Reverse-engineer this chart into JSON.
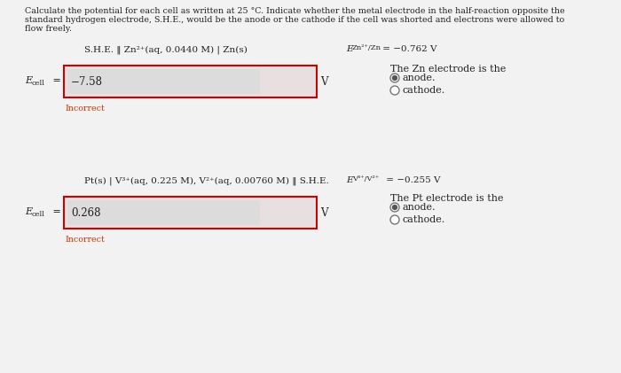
{
  "bg_color": "#d8d8d8",
  "panel_color": "#f0f0f0",
  "header_text_line1": "Calculate the potential for each cell as written at 25 °C. Indicate whether the metal electrode in the half-reaction opposite the",
  "header_text_line2": "standard hydrogen electrode, S.H.E., would be the anode or the cathode if the cell was shorted and electrons were allowed to",
  "header_text_line3": "flow freely.",
  "section1": {
    "cell_notation": "S.H.E. ‖ Zn²⁺(aq, 0.0440 M) | Zn(s)",
    "std_pot_prefix": "E",
    "std_pot_sub": "Zn²⁺/Zn",
    "std_pot_suffix": " = −0.762 V",
    "ecell_label": "E",
    "ecell_sub": "cell",
    "input_value": "−7.58",
    "unit": "V",
    "incorrect_label": "Incorrect",
    "right_text": "The Zn electrode is the",
    "radio1_label": "anode.",
    "radio2_label": "cathode."
  },
  "section2": {
    "cell_notation": "Pt(s) | V³⁺(aq, 0.225 M), V²⁺(aq, 0.00760 M) ‖ S.H.E.",
    "std_pot_prefix": "E",
    "std_pot_sub": "V³⁺/V²⁺",
    "std_pot_suffix": " = −0.255 V",
    "ecell_label": "E",
    "ecell_sub": "cell",
    "input_value": "0.268",
    "unit": "V",
    "incorrect_label": "Incorrect",
    "right_text": "The Pt electrode is the",
    "radio1_label": "anode.",
    "radio2_label": "cathode."
  },
  "font_size_header": 6.8,
  "font_size_notation": 7.5,
  "font_size_ecell": 8.0,
  "font_size_input": 8.5,
  "font_size_incorrect": 6.8,
  "font_size_radio": 8.0,
  "font_size_std": 7.5,
  "input_box_facecolor": "#e8e0e0",
  "input_border_color": "#cc0000",
  "inner_box_color": "#dcdcdc",
  "text_color": "#222222",
  "incorrect_color": "#cc3300",
  "radio_fill_color": "#555555",
  "radio_ring_color": "#777777"
}
